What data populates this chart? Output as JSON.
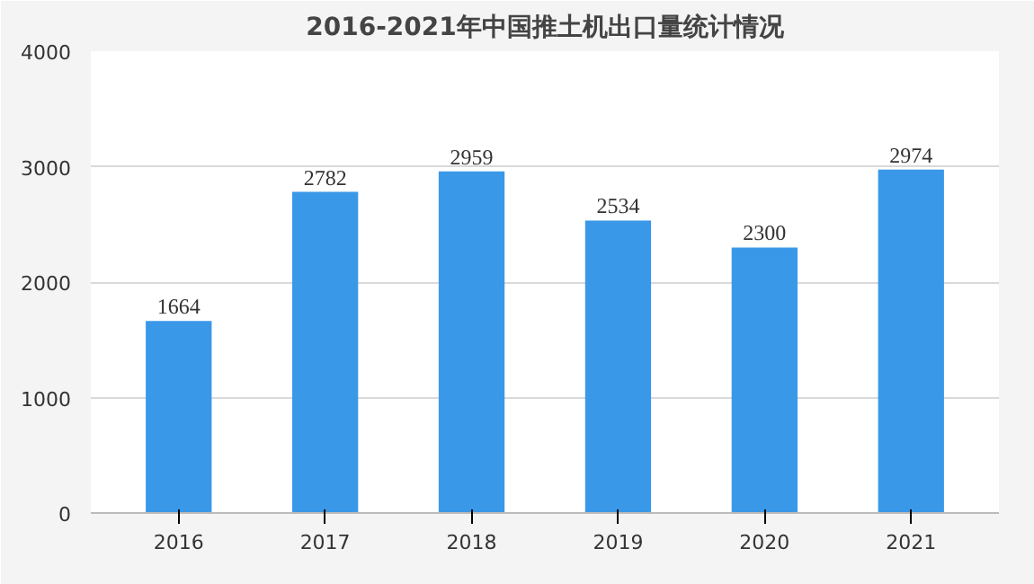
{
  "chart_data": {
    "type": "bar",
    "title": "2016-2021年中国推土机出口量统计情况",
    "categories": [
      "2016",
      "2017",
      "2018",
      "2019",
      "2020",
      "2021"
    ],
    "values": [
      1664,
      2782,
      2959,
      2534,
      2300,
      2974
    ],
    "color": "#3a98e8",
    "ylim": [
      0,
      4000
    ],
    "yticks": [
      0,
      1000,
      2000,
      3000,
      4000
    ],
    "grid": "y",
    "data_labels": true
  }
}
